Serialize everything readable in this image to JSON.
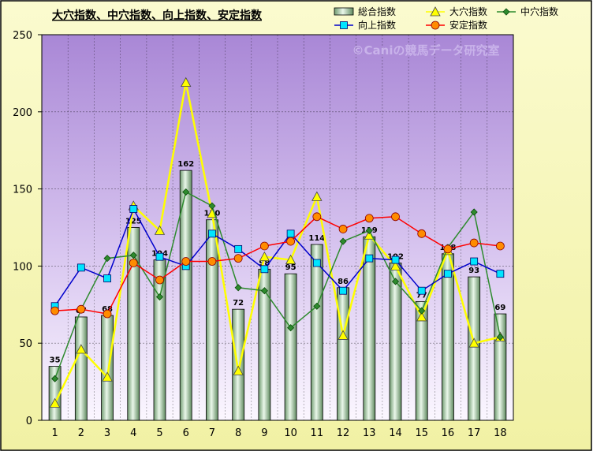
{
  "chart_data": {
    "type": "bar",
    "title": "大穴指数、中穴指数、向上指数、安定指数",
    "watermark": "©Caniの競馬データ研究室",
    "xlabel": "",
    "ylabel": "",
    "ylim": [
      0,
      250
    ],
    "yticks": [
      0,
      50,
      100,
      150,
      200,
      250
    ],
    "grid": true,
    "legend_position": "top-right",
    "categories": [
      "1",
      "2",
      "3",
      "4",
      "5",
      "6",
      "7",
      "8",
      "9",
      "10",
      "11",
      "12",
      "13",
      "14",
      "15",
      "16",
      "17",
      "18"
    ],
    "series": [
      {
        "name": "総合指数",
        "kind": "bar",
        "color": "#8fbc8f",
        "values": [
          35,
          67,
          68,
          125,
          104,
          162,
          130,
          72,
          98,
          95,
          114,
          86,
          119,
          102,
          77,
          108,
          93,
          69
        ]
      },
      {
        "name": "大穴指数",
        "kind": "line",
        "color": "#ffff00",
        "marker": "triangle",
        "values": [
          11,
          46,
          28,
          139,
          123,
          219,
          134,
          32,
          106,
          104,
          145,
          55,
          120,
          100,
          67,
          110,
          50,
          54
        ]
      },
      {
        "name": "中穴指数",
        "kind": "line",
        "color": "#2e8b2e",
        "marker": "diamond",
        "values": [
          27,
          72,
          105,
          107,
          80,
          148,
          139,
          86,
          84,
          60,
          74,
          116,
          123,
          90,
          71,
          112,
          135,
          54
        ]
      },
      {
        "name": "向上指数",
        "kind": "line",
        "color": "#0000cc",
        "marker": "square",
        "values": [
          74,
          99,
          92,
          137,
          106,
          100,
          121,
          111,
          98,
          121,
          102,
          84,
          105,
          104,
          84,
          95,
          103,
          95
        ]
      },
      {
        "name": "安定指数",
        "kind": "line",
        "color": "#ff0000",
        "marker": "circle",
        "values": [
          71,
          72,
          69,
          102,
          91,
          103,
          103,
          105,
          113,
          116,
          132,
          124,
          131,
          132,
          121,
          111,
          115,
          113
        ]
      }
    ]
  }
}
